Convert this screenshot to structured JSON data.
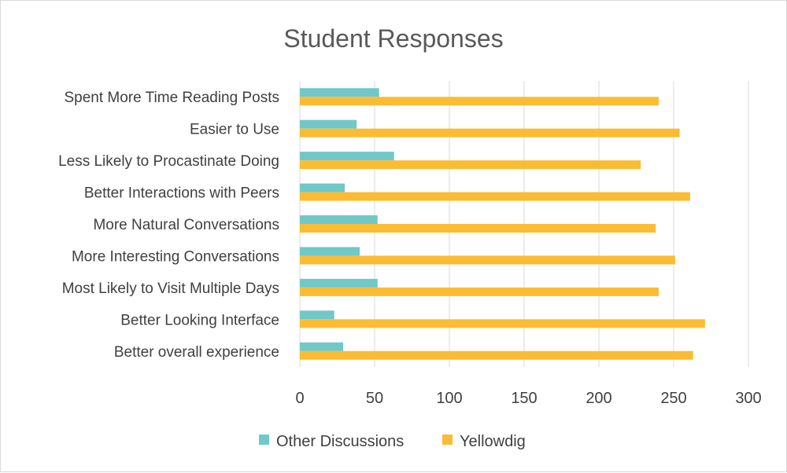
{
  "chart_data": {
    "type": "bar",
    "orientation": "horizontal",
    "title": "Student Responses",
    "categories": [
      "Spent More Time Reading Posts",
      "Easier to Use",
      "Less Likely to Procastinate Doing",
      "Better Interactions with Peers",
      "More Natural Conversations",
      "More Interesting Conversations",
      "Most Likely to Visit Multiple Days",
      "Better Looking Interface",
      "Better overall experience"
    ],
    "series": [
      {
        "name": "Other Discussions",
        "color": "#70c8c8",
        "values": [
          53,
          38,
          63,
          30,
          52,
          40,
          52,
          23,
          29
        ]
      },
      {
        "name": "Yellowdig",
        "color": "#fbbc34",
        "values": [
          240,
          254,
          228,
          261,
          238,
          251,
          240,
          271,
          263
        ]
      }
    ],
    "xlim": [
      0,
      300
    ],
    "xticks": [
      "0",
      "50",
      "100",
      "150",
      "200",
      "250",
      "300"
    ],
    "grid": true,
    "legend_position": "bottom"
  }
}
